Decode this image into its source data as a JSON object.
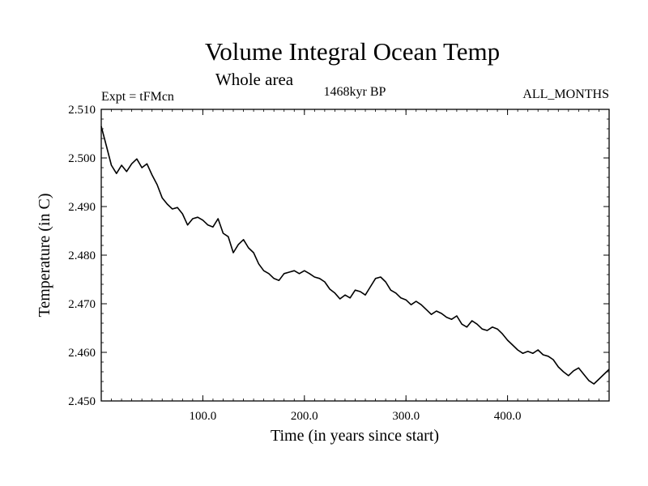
{
  "chart_data": {
    "type": "line",
    "title": "Volume Integral Ocean Temp",
    "subtitle": "Whole area",
    "experiment": "Expt = tFMcn",
    "period": "1468kyr BP",
    "months": "ALL_MONTHS",
    "xlabel": "Time (in years since start)",
    "ylabel": "Temperature (in C)",
    "xlim": [
      0,
      500
    ],
    "ylim": [
      2.45,
      2.51
    ],
    "x_ticks": [
      100,
      200,
      300,
      400
    ],
    "x_tick_labels": [
      "100.0",
      "200.0",
      "300.0",
      "400.0"
    ],
    "y_ticks": [
      2.45,
      2.46,
      2.47,
      2.48,
      2.49,
      2.5,
      2.51
    ],
    "y_tick_labels": [
      "2.450",
      "2.460",
      "2.470",
      "2.480",
      "2.490",
      "2.500",
      "2.510"
    ],
    "series": [
      {
        "name": "Volume integral temperature",
        "color": "#000000",
        "x": [
          0,
          5,
          10,
          15,
          20,
          25,
          30,
          35,
          40,
          45,
          50,
          55,
          60,
          65,
          70,
          75,
          80,
          85,
          90,
          95,
          100,
          105,
          110,
          115,
          120,
          125,
          130,
          135,
          140,
          145,
          150,
          155,
          160,
          165,
          170,
          175,
          180,
          185,
          190,
          195,
          200,
          205,
          210,
          215,
          220,
          225,
          230,
          235,
          240,
          245,
          250,
          255,
          260,
          265,
          270,
          275,
          280,
          285,
          290,
          295,
          300,
          305,
          310,
          315,
          320,
          325,
          330,
          335,
          340,
          345,
          350,
          355,
          360,
          365,
          370,
          375,
          380,
          385,
          390,
          395,
          400,
          405,
          410,
          415,
          420,
          425,
          430,
          435,
          440,
          445,
          450,
          455,
          460,
          465,
          470,
          475,
          480,
          485,
          490,
          495,
          500
        ],
        "values": [
          2.5065,
          2.5025,
          2.4985,
          2.4968,
          2.4985,
          2.4972,
          2.4988,
          2.4998,
          2.498,
          2.4988,
          2.4965,
          2.4945,
          2.4918,
          2.4905,
          2.4895,
          2.4898,
          2.4885,
          2.4862,
          2.4875,
          2.4878,
          2.4872,
          2.4862,
          2.4858,
          2.4875,
          2.4845,
          2.4838,
          2.4805,
          2.4822,
          2.4832,
          2.4815,
          2.4805,
          2.4782,
          2.4768,
          2.4762,
          2.4752,
          2.4748,
          2.4762,
          2.4765,
          2.4768,
          2.4762,
          2.4768,
          2.4762,
          2.4755,
          2.4752,
          2.4745,
          2.473,
          2.4722,
          2.471,
          2.4718,
          2.4712,
          2.4728,
          2.4725,
          2.4718,
          2.4735,
          2.4752,
          2.4755,
          2.4745,
          2.4728,
          2.4722,
          2.4712,
          2.4708,
          2.4698,
          2.4705,
          2.4698,
          2.4688,
          2.4678,
          2.4685,
          2.468,
          2.4672,
          2.4668,
          2.4675,
          2.4658,
          2.4652,
          2.4665,
          2.4658,
          2.4648,
          2.4645,
          2.4652,
          2.4648,
          2.4638,
          2.4625,
          2.4615,
          2.4605,
          2.4598,
          2.4602,
          2.4598,
          2.4605,
          2.4595,
          2.4592,
          2.4585,
          2.457,
          2.456,
          2.4552,
          2.4562,
          2.4568,
          2.4555,
          2.4542,
          2.4535,
          2.4545,
          2.4555,
          2.4565
        ]
      }
    ]
  }
}
